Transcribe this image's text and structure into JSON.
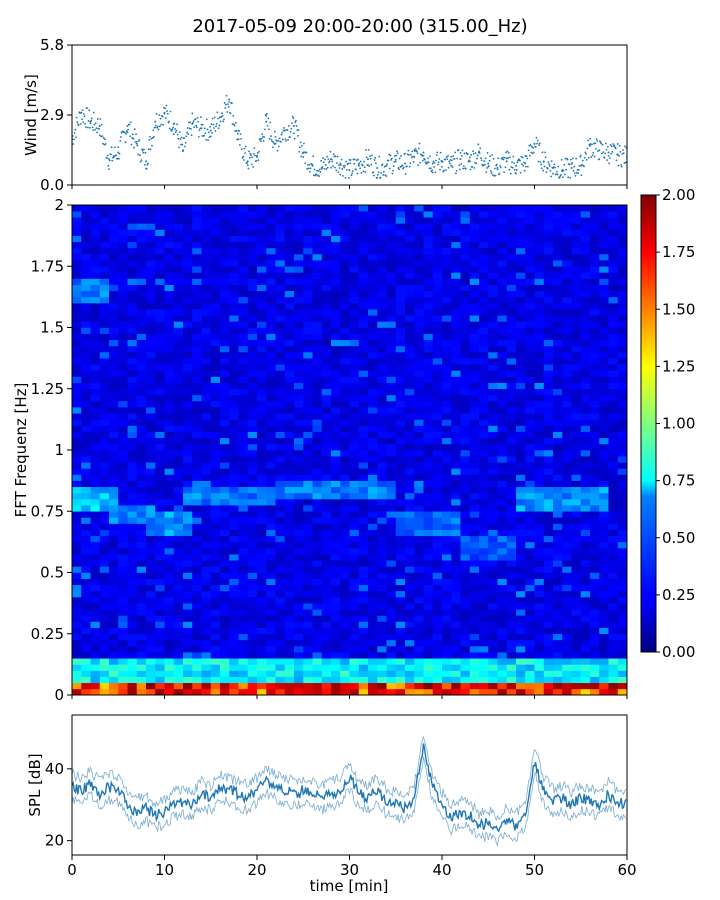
{
  "title": "2017-05-09 20:00-20:00 (315.00_Hz)",
  "chart_data": [
    {
      "type": "scatter",
      "name": "wind-panel",
      "ylabel": "Wind [m/s]",
      "ylim": [
        0,
        5.8
      ],
      "yticks": [
        "0.0",
        "2.9",
        "5.8"
      ],
      "ytick_values": [
        0,
        2.9,
        5.8
      ],
      "xlim": [
        0,
        60
      ],
      "color": "#1f77b4",
      "series": [
        {
          "x": [
            0,
            1,
            2,
            3,
            4,
            5,
            6,
            7,
            8,
            9,
            10,
            11,
            12,
            13,
            14,
            15,
            16,
            17,
            18,
            19,
            20,
            21,
            22,
            23,
            24,
            25,
            26,
            27,
            28,
            29,
            30,
            31,
            32,
            33,
            34,
            35,
            36,
            37,
            38,
            39,
            40,
            41,
            42,
            43,
            44,
            45,
            46,
            47,
            48,
            49,
            50,
            51,
            52,
            53,
            54,
            55,
            56,
            57,
            58,
            59,
            60
          ],
          "y": [
            1.8,
            3.0,
            2.6,
            2.4,
            0.9,
            1.2,
            2.4,
            1.6,
            0.8,
            2.6,
            3.0,
            2.5,
            1.3,
            2.5,
            2.3,
            2.2,
            2.8,
            3.6,
            1.8,
            0.8,
            1.0,
            2.6,
            1.6,
            2.2,
            2.4,
            1.2,
            0.6,
            0.5,
            0.9,
            0.7,
            0.4,
            0.6,
            0.9,
            0.5,
            0.6,
            0.8,
            0.7,
            1.0,
            1.2,
            0.7,
            0.8,
            0.6,
            0.9,
            0.8,
            1.2,
            0.7,
            0.5,
            0.8,
            0.6,
            0.7,
            1.6,
            0.8,
            0.5,
            0.4,
            0.5,
            0.6,
            1.5,
            1.3,
            1.2,
            1.1,
            1.0
          ]
        }
      ]
    },
    {
      "type": "heatmap",
      "name": "spectrogram",
      "ylabel": "FFT Frequenz [Hz]",
      "ylim": [
        0,
        2
      ],
      "yticks": [
        "0",
        "0.25",
        "0.5",
        "0.75",
        "1",
        "1.25",
        "1.5",
        "1.75",
        "2"
      ],
      "ytick_values": [
        0,
        0.25,
        0.5,
        0.75,
        1,
        1.25,
        1.5,
        1.75,
        2
      ],
      "xlim": [
        0,
        60
      ],
      "colormap": "jet",
      "clim": [
        0,
        2
      ],
      "colorbar_ticks": [
        "0.00",
        "0.25",
        "0.50",
        "0.75",
        "1.00",
        "1.25",
        "1.50",
        "1.75",
        "2.00"
      ],
      "colorbar_tick_values": [
        0,
        0.25,
        0.5,
        0.75,
        1.0,
        1.25,
        1.5,
        1.75,
        2.0
      ],
      "bands": [
        {
          "x0": 0,
          "x1": 5,
          "f": 0.8,
          "value": 0.7
        },
        {
          "x0": 4,
          "x1": 9,
          "f": 0.74,
          "value": 0.55
        },
        {
          "x0": 8,
          "x1": 13,
          "f": 0.7,
          "value": 0.6
        },
        {
          "x0": 12,
          "x1": 22,
          "f": 0.82,
          "value": 0.55
        },
        {
          "x0": 22,
          "x1": 35,
          "f": 0.84,
          "value": 0.55
        },
        {
          "x0": 35,
          "x1": 42,
          "f": 0.7,
          "value": 0.5
        },
        {
          "x0": 42,
          "x1": 48,
          "f": 0.6,
          "value": 0.45
        },
        {
          "x0": 48,
          "x1": 58,
          "f": 0.8,
          "value": 0.6
        },
        {
          "x0": 0,
          "x1": 4,
          "f": 1.65,
          "value": 0.55
        },
        {
          "x0": 0,
          "x1": 60,
          "f": 0.1,
          "value": 0.8
        },
        {
          "x0": 0,
          "x1": 60,
          "f": 0.02,
          "value": 1.8
        }
      ]
    },
    {
      "type": "line",
      "name": "spl-panel",
      "ylabel": "SPL [dB]",
      "xlabel": "time [min]",
      "ylim": [
        16,
        55
      ],
      "yticks": [
        "20",
        "40"
      ],
      "ytick_values": [
        20,
        40
      ],
      "xlim": [
        0,
        60
      ],
      "xticks": [
        "0",
        "10",
        "20",
        "30",
        "40",
        "50",
        "60"
      ],
      "xtick_values": [
        0,
        10,
        20,
        30,
        40,
        50,
        60
      ],
      "color": "#1f77b4",
      "series": [
        {
          "x": [
            0,
            1,
            2,
            3,
            4,
            5,
            6,
            7,
            8,
            9,
            10,
            11,
            12,
            13,
            14,
            15,
            16,
            17,
            18,
            19,
            20,
            21,
            22,
            23,
            24,
            25,
            26,
            27,
            28,
            29,
            30,
            31,
            32,
            33,
            34,
            35,
            36,
            37,
            38,
            39,
            40,
            41,
            42,
            43,
            44,
            45,
            46,
            47,
            48,
            49,
            50,
            51,
            52,
            53,
            54,
            55,
            56,
            57,
            58,
            59,
            60
          ],
          "y": [
            35,
            34,
            36,
            33,
            35,
            34,
            30,
            28,
            29,
            27,
            28,
            30,
            31,
            30,
            33,
            32,
            35,
            34,
            33,
            32,
            34,
            37,
            35,
            34,
            33,
            34,
            33,
            32,
            33,
            34,
            38,
            33,
            32,
            34,
            31,
            30,
            29,
            32,
            46,
            35,
            30,
            26,
            28,
            27,
            24,
            25,
            23,
            26,
            24,
            27,
            42,
            34,
            31,
            32,
            30,
            32,
            31,
            30,
            33,
            30,
            31
          ]
        }
      ]
    }
  ]
}
